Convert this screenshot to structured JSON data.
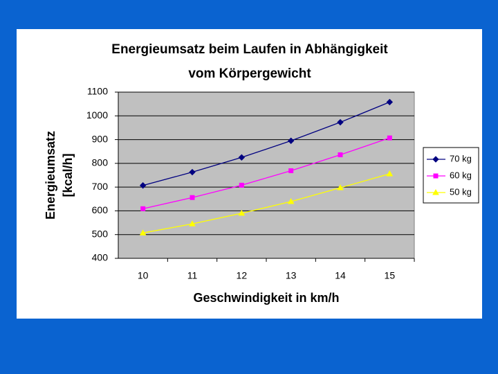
{
  "chart_data": {
    "type": "line",
    "title": [
      "Energieumsatz beim Laufen in Abhängigkeit",
      "vom Körpergewicht"
    ],
    "ylabel": [
      "Energieumsatz",
      "[kcal/h]"
    ],
    "xlabel": "Geschwindigkeit in km/h",
    "categories": [
      "10",
      "11",
      "12",
      "13",
      "14",
      "15"
    ],
    "series": [
      {
        "name": "70 kg",
        "color": "#000080",
        "marker": "diamond",
        "values": [
          707,
          763,
          825,
          895,
          973,
          1058
        ]
      },
      {
        "name": "60 kg",
        "color": "#ff00ff",
        "marker": "square",
        "values": [
          609,
          656,
          708,
          769,
          836,
          907
        ]
      },
      {
        "name": "50 kg",
        "color": "#ffff00",
        "marker": "triangle",
        "values": [
          507,
          545,
          590,
          639,
          697,
          756
        ]
      }
    ],
    "ylim": [
      400,
      1100
    ],
    "yticks": [
      400,
      500,
      600,
      700,
      800,
      900,
      1000,
      1100
    ],
    "grid": true,
    "legend": "right"
  }
}
